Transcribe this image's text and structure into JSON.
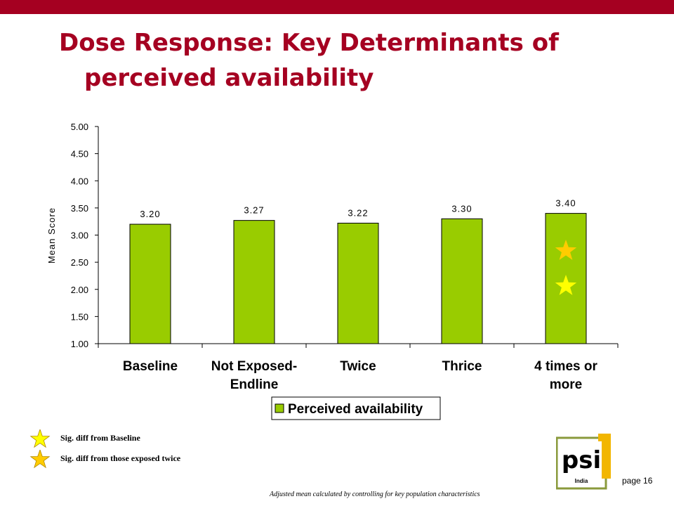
{
  "slide": {
    "title_line1": "Dose Response: Key Determinants of",
    "title_line2": "perceived availability",
    "page_label": "page 16",
    "footnote": "Adjusted mean calculated by controlling for key population characteristics",
    "colors": {
      "banner": "#a50021",
      "title": "#a50021",
      "bar": "#99cc00",
      "star": "#ffcc00"
    }
  },
  "legend_notes": [
    {
      "text": "Sig. diff from Baseline",
      "icon": "star-icon",
      "color": "#ffff00"
    },
    {
      "text": "Sig. diff from those exposed twice",
      "icon": "star-icon",
      "color": "#ffcc00"
    }
  ],
  "logo": {
    "text": "psi",
    "sub": "India",
    "icon": "psi-india-logo"
  },
  "chart_data": {
    "type": "bar",
    "categories": [
      [
        "Baseline"
      ],
      [
        "Not Exposed-",
        "Endline"
      ],
      [
        "Twice"
      ],
      [
        "Thrice"
      ],
      [
        "4 times or",
        "more"
      ]
    ],
    "series": [
      {
        "name": "Perceived availability",
        "values": [
          3.2,
          3.27,
          3.22,
          3.3,
          3.4
        ],
        "color": "#99cc00"
      }
    ],
    "data_labels": [
      "3.20",
      "3.27",
      "3.22",
      "3.30",
      "3.40"
    ],
    "ylabel": "Mean Score",
    "xlabel": "",
    "ylim": [
      1.0,
      5.0
    ],
    "yticks": [
      "1.00",
      "1.50",
      "2.00",
      "2.50",
      "3.00",
      "3.50",
      "4.00",
      "4.50",
      "5.00"
    ],
    "ytick_values": [
      1.0,
      1.5,
      2.0,
      2.5,
      3.0,
      3.5,
      4.0,
      4.5,
      5.0
    ],
    "grid": false,
    "legend_position": "bottom",
    "annotations": [
      {
        "category_index": 4,
        "markers": [
          "star-icon",
          "star-icon"
        ],
        "colors": [
          "#ffcc00",
          "#ffff00"
        ]
      }
    ]
  }
}
